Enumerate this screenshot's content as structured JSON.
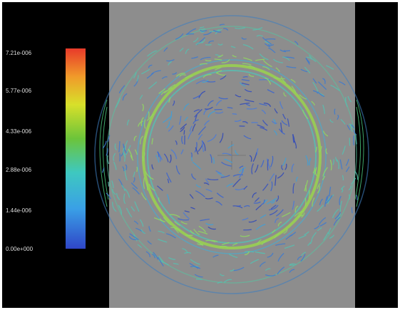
{
  "colorbar": {
    "labels": [
      "7.21e-006",
      "5.77e-006",
      "4.33e-006",
      "2.88e-006",
      "1.44e-006",
      "0.00e+000"
    ]
  }
}
